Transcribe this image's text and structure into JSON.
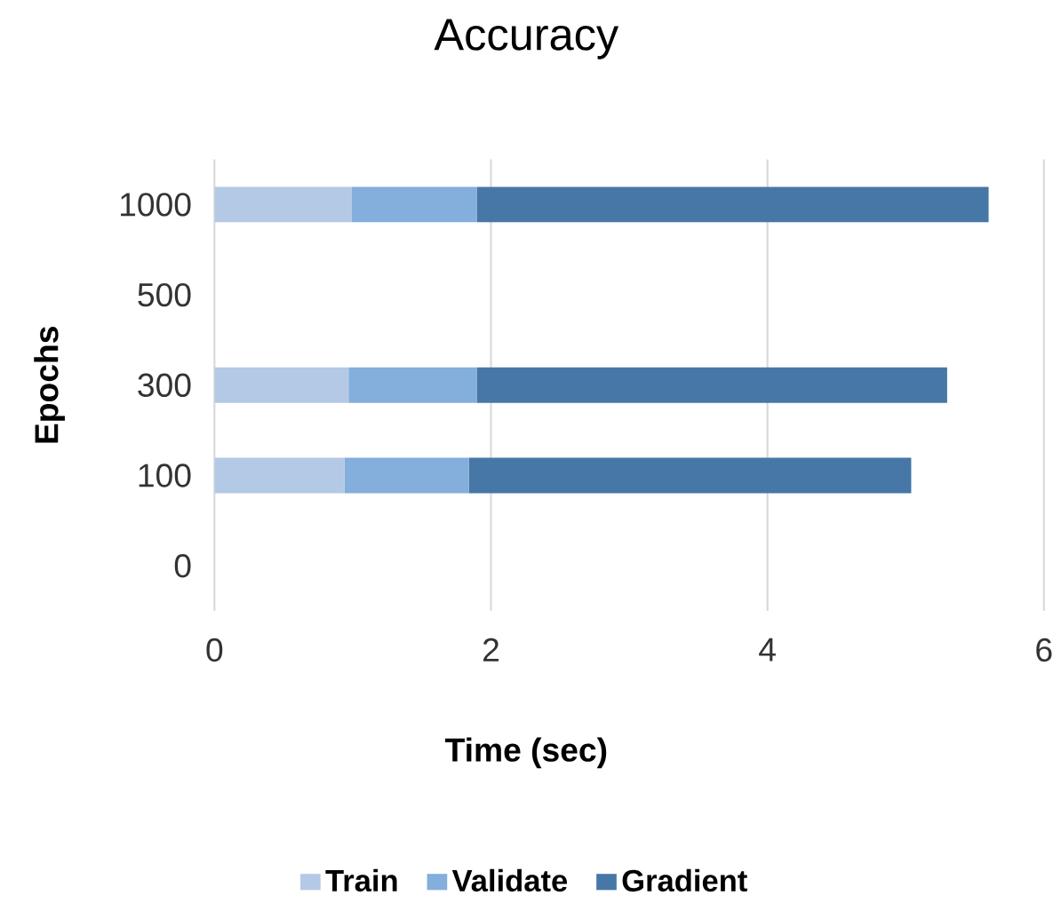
{
  "chart_data": {
    "type": "bar",
    "orientation": "horizontal",
    "stacked": true,
    "title": "Accuracy",
    "xlabel": "Time (sec)",
    "ylabel": "Epochs",
    "categories": [
      "1000",
      "500",
      "300",
      "100",
      "0"
    ],
    "series": [
      {
        "name": "Train",
        "color": "#b4c9e6",
        "values": [
          0.99,
          null,
          0.97,
          0.94,
          null
        ]
      },
      {
        "name": "Validate",
        "color": "#84aedb",
        "values": [
          0.91,
          null,
          0.93,
          0.9,
          null
        ]
      },
      {
        "name": "Gradient",
        "color": "#4677a7",
        "values": [
          3.7,
          null,
          3.4,
          3.2,
          null
        ]
      }
    ],
    "xlim": [
      0,
      6
    ],
    "xticks": [
      0,
      2,
      4,
      6
    ],
    "grid": "x",
    "legend": "bottom"
  }
}
